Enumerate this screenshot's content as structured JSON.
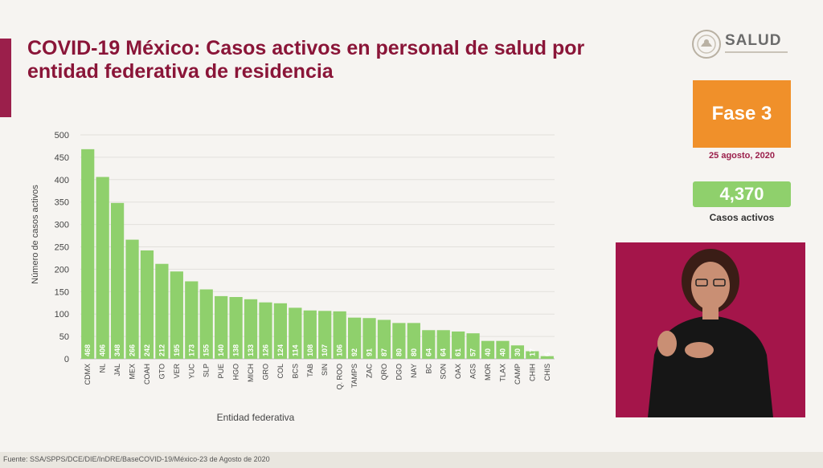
{
  "header": {
    "title_line1": "COVID-19 México: Casos activos en personal de salud por",
    "title_line2": "entidad federativa de residencia"
  },
  "logo": {
    "text": "SALUD",
    "icon": "mexican-seal-icon"
  },
  "phase": {
    "label": "Fase 3",
    "date": "25 agosto, 2020"
  },
  "active_cases": {
    "value": "4,370",
    "label": "Casos activos"
  },
  "footer": {
    "source": "Fuente: SSA/SPPS/DCE/DIE/InDRE/BaseCOVID-19/México-23 de Agosto de 2020"
  },
  "colors": {
    "accent": "#9b1f4b",
    "bar": "#8fd06c",
    "phase": "#f0902a",
    "interpreter_bg": "#a4154a"
  },
  "chart_data": {
    "type": "bar",
    "title": "",
    "xlabel": "Entidad federativa",
    "ylabel": "Número de casos activos",
    "ylim": [
      0,
      500
    ],
    "yticks": [
      0,
      50,
      100,
      150,
      200,
      250,
      300,
      350,
      400,
      450,
      500
    ],
    "grid": true,
    "categories": [
      "CDMX",
      "NL",
      "JAL",
      "MEX",
      "COAH",
      "GTO",
      "VER",
      "YUC",
      "SLP",
      "PUE",
      "HGO",
      "MICH",
      "GRO",
      "COL",
      "BCS",
      "TAB",
      "SIN",
      "Q. ROO",
      "TAMPS",
      "ZAC",
      "QRO",
      "DGO",
      "NAY",
      "BC",
      "SON",
      "OAX",
      "AGS",
      "MOR",
      "TLAX",
      "CAMP",
      "CHIH",
      "CHIS"
    ],
    "values": [
      468,
      406,
      348,
      266,
      242,
      212,
      195,
      173,
      155,
      140,
      138,
      133,
      126,
      124,
      114,
      108,
      107,
      106,
      92,
      91,
      87,
      80,
      80,
      64,
      64,
      61,
      57,
      40,
      40,
      30,
      17,
      6
    ]
  }
}
